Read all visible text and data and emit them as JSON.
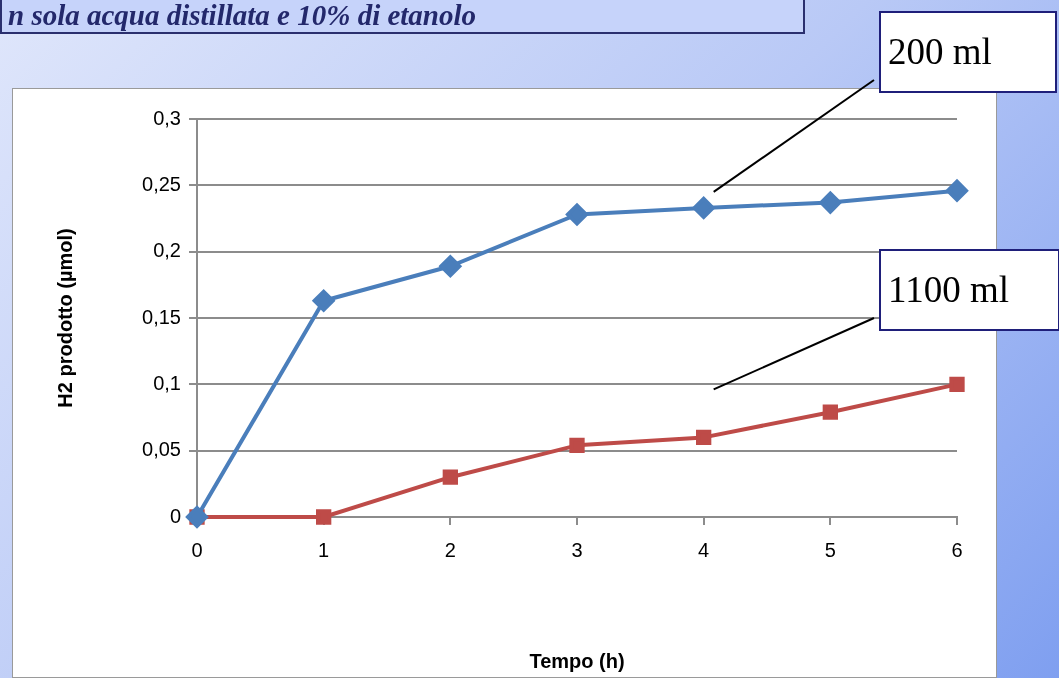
{
  "chart_data": {
    "type": "line",
    "title": "n sola acqua distillata e 10% di etanolo",
    "xlabel": "Tempo (h)",
    "ylabel": "H2 prodotto (µmol)",
    "x": [
      0,
      1,
      2,
      3,
      4,
      5,
      6
    ],
    "series": [
      {
        "name": "200 ml",
        "color": "#4a7ebb",
        "marker": "diamond",
        "values": [
          0,
          0.163,
          0.189,
          0.228,
          0.233,
          0.237,
          0.246
        ]
      },
      {
        "name": "1100 ml",
        "color": "#be4b48",
        "marker": "square",
        "values": [
          0,
          0,
          0.03,
          0.054,
          0.06,
          0.079,
          0.1
        ]
      }
    ],
    "xlim": [
      0,
      6
    ],
    "xticks": [
      0,
      1,
      2,
      3,
      4,
      5,
      6
    ],
    "ylim": [
      0,
      0.3
    ],
    "yticks": [
      0,
      {
        "value": 0.05,
        "label": "0,05"
      },
      {
        "value": 0.1,
        "label": "0,1"
      },
      {
        "value": 0.15,
        "label": "0,15"
      },
      {
        "value": 0.2,
        "label": "0,2"
      },
      {
        "value": 0.25,
        "label": "0,25"
      },
      {
        "value": 0.3,
        "label": "0,3"
      }
    ],
    "grid": "y",
    "legend": false,
    "line_style": "solid"
  }
}
